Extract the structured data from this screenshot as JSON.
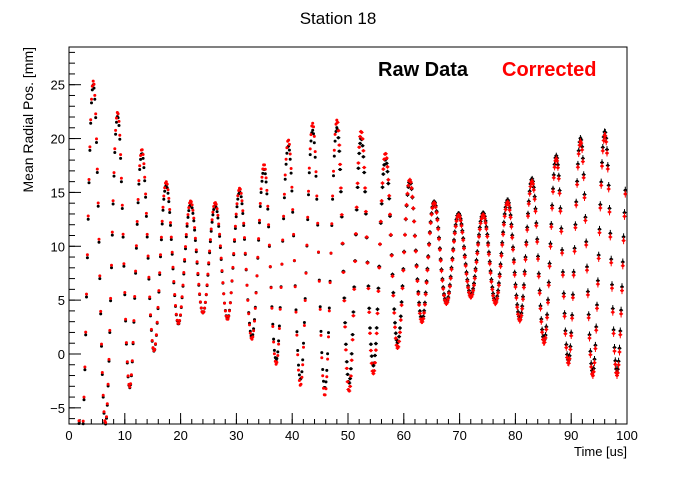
{
  "chart_data": {
    "type": "scatter",
    "title": "Station 18",
    "xlabel": "Time [us]",
    "ylabel": "Mean Radial Pos. [mm]",
    "xlim": [
      0,
      100
    ],
    "ylim": [
      -6.5,
      28.5
    ],
    "x_ticks": [
      0,
      10,
      20,
      30,
      40,
      50,
      60,
      70,
      80,
      90,
      100
    ],
    "y_ticks": [
      -5,
      0,
      5,
      10,
      15,
      20,
      25
    ],
    "x_minor_step": 2,
    "y_minor_step": 1,
    "grid": false,
    "legend_position": "top-right",
    "series": [
      {
        "name": "Raw Data",
        "color": "#000000",
        "generator": {
          "t_start": 1.8,
          "t_end": 99.8,
          "t_step": 0.149,
          "period": 4.365,
          "center": 8.5,
          "center_drift": 0.95,
          "amplitude": 12.0,
          "decay": 120,
          "amplitude_floor": 7.5,
          "beat_period": 48,
          "beat_amplitude": 0.5,
          "error_bars_from_t": 48
        }
      },
      {
        "name": "Corrected",
        "color": "#ff0000",
        "generator": {
          "t_start": 1.8,
          "t_end": 99.8,
          "t_step": 0.149,
          "period": 4.365,
          "center": 8.8,
          "center_drift": 0.3,
          "amplitude": 12.0,
          "decay": 140,
          "amplitude_floor": 7.5,
          "beat_period": 48,
          "beat_amplitude": 0.5,
          "error_bars_from_t": 48
        }
      }
    ]
  }
}
